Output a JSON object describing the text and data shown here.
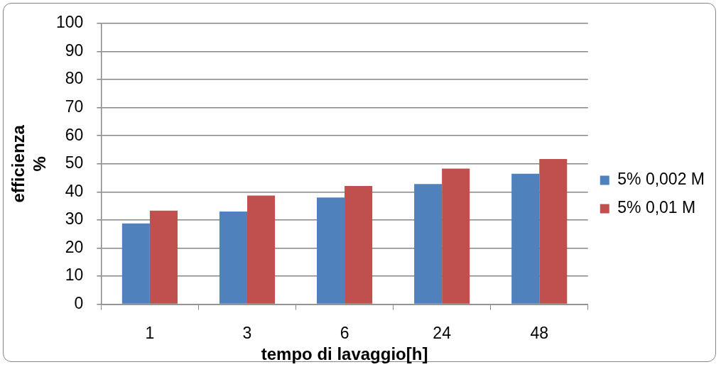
{
  "chart_data": {
    "type": "bar",
    "xlabel": "tempo di lavaggio[h]",
    "ylabel": "efficienza %",
    "categories": [
      "1",
      "3",
      "6",
      "24",
      "48"
    ],
    "series": [
      {
        "name": "5% 0,002 M",
        "color": "#4f81bd",
        "values": [
          28.8,
          33.0,
          38.0,
          42.8,
          46.5
        ]
      },
      {
        "name": "5% 0,01 M",
        "color": "#c0504d",
        "values": [
          33.3,
          38.7,
          42.1,
          48.3,
          51.7
        ]
      }
    ],
    "ylim": [
      0,
      100
    ],
    "yticks": [
      0,
      10,
      20,
      30,
      40,
      50,
      60,
      70,
      80,
      90,
      100
    ],
    "grid": "y",
    "legend": "right"
  }
}
